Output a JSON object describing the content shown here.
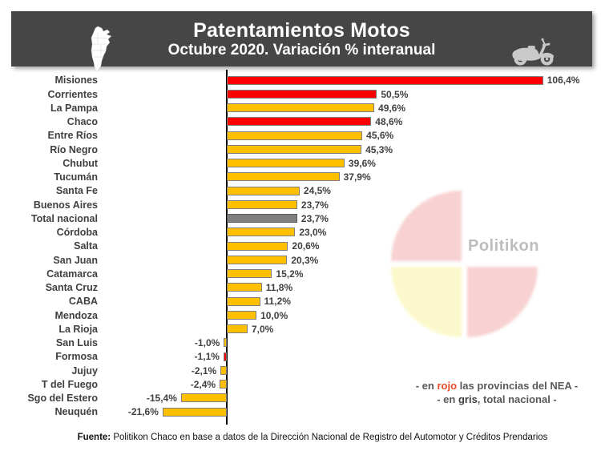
{
  "header": {
    "title": "Patentamientos Motos",
    "subtitle": "Octubre 2020. Variación % interanual",
    "bg_color": "#464646",
    "left_icon": "argentina-map-icon",
    "right_icon": "scooter-icon"
  },
  "chart_data": {
    "type": "bar",
    "orientation": "horizontal",
    "title": "Patentamientos Motos",
    "subtitle": "Octubre 2020. Variación % interanual",
    "xlabel": "",
    "ylabel": "",
    "xlim": [
      -30,
      115
    ],
    "grid": false,
    "categories": [
      "Misiones",
      "Corrientes",
      "La Pampa",
      "Chaco",
      "Entre Ríos",
      "Río Negro",
      "Chubut",
      "Tucumán",
      "Santa Fe",
      "Buenos Aires",
      "Total nacional",
      "Córdoba",
      "Salta",
      "San Juan",
      "Catamarca",
      "Santa Cruz",
      "CABA",
      "Mendoza",
      "La Rioja",
      "San Luis",
      "Formosa",
      "Jujuy",
      "T del Fuego",
      "Sgo del Estero",
      "Neuquén"
    ],
    "values": [
      106.4,
      50.5,
      49.6,
      48.6,
      45.6,
      45.3,
      39.6,
      37.9,
      24.5,
      23.7,
      23.7,
      23.0,
      20.6,
      20.3,
      15.2,
      11.8,
      11.2,
      10.0,
      7.0,
      -1.0,
      -1.1,
      -2.1,
      -2.4,
      -15.4,
      -21.6
    ],
    "value_labels": [
      "106,4%",
      "50,5%",
      "49,6%",
      "48,6%",
      "45,6%",
      "45,3%",
      "39,6%",
      "37,9%",
      "24,5%",
      "23,7%",
      "23,7%",
      "23,0%",
      "20,6%",
      "20,3%",
      "15,2%",
      "11,8%",
      "11,2%",
      "10,0%",
      "7,0%",
      "-1,0%",
      "-1,1%",
      "-2,1%",
      "-2,4%",
      "-15,4%",
      "-21,6%"
    ],
    "bar_colors": [
      "red",
      "red",
      "yellow",
      "red",
      "yellow",
      "yellow",
      "yellow",
      "yellow",
      "yellow",
      "yellow",
      "gray",
      "yellow",
      "yellow",
      "yellow",
      "yellow",
      "yellow",
      "yellow",
      "yellow",
      "yellow",
      "yellow",
      "red",
      "yellow",
      "yellow",
      "yellow",
      "yellow"
    ],
    "colors": {
      "red": "#FA0000",
      "yellow": "#FFC000",
      "gray": "#808080",
      "bar_border": "#7f7f7f",
      "gray_border": "#595959"
    }
  },
  "legend": {
    "line1": {
      "prefix": "- en ",
      "highlight": "rojo",
      "suffix": " las provincias del NEA -",
      "highlight_color": "#EB4B27"
    },
    "line2": {
      "prefix": "- en ",
      "highlight": "gris",
      "suffix": ", total nacional -"
    }
  },
  "watermark": {
    "text": "Politikon",
    "pink": "#F8D2D2",
    "yellow": "#FBF9CC"
  },
  "footer": {
    "label": "Fuente:",
    "text": " Politikon Chaco en base a datos de la Dirección Nacional de Registro del Automotor y Créditos Prendarios"
  }
}
